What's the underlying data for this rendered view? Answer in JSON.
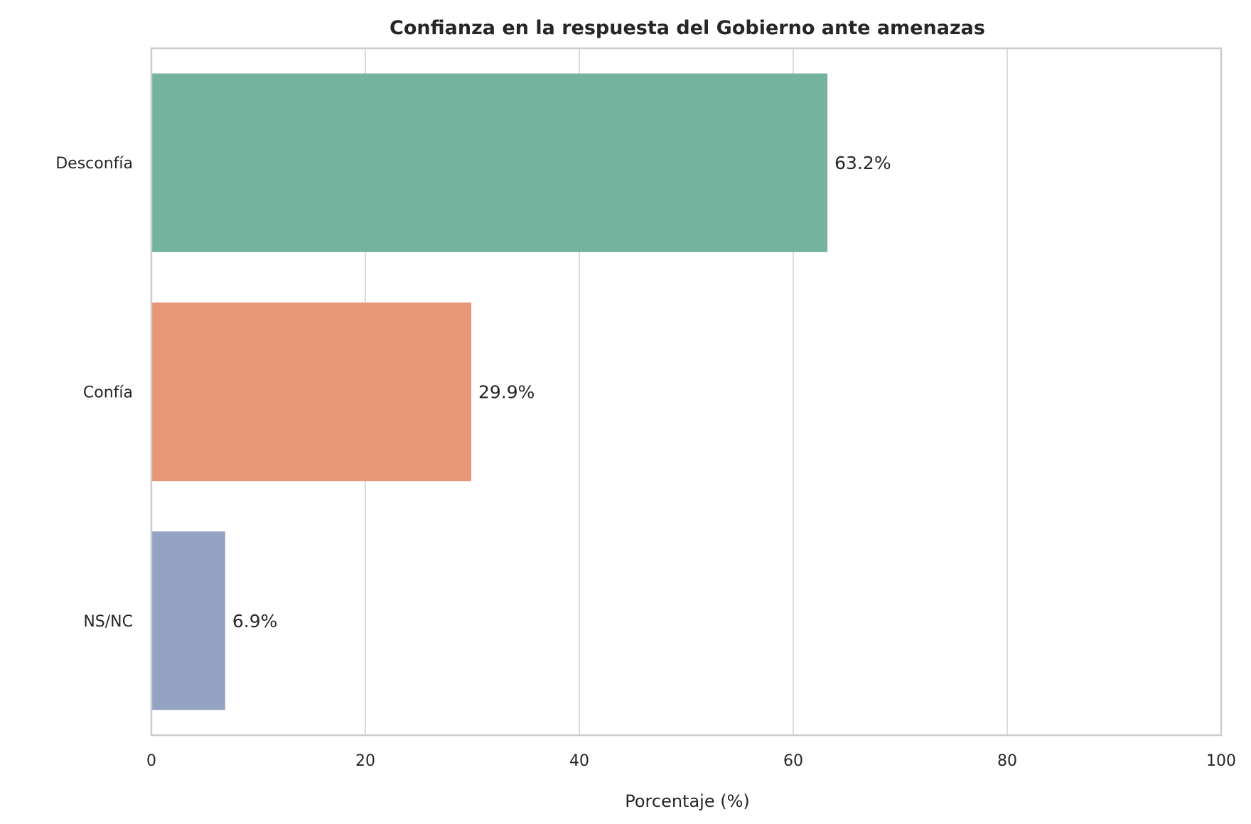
{
  "chart_data": {
    "type": "bar",
    "orientation": "horizontal",
    "title": "Confianza en la respuesta del Gobierno ante amenazas",
    "xlabel": "Porcentaje (%)",
    "ylabel": "",
    "xlim": [
      0,
      100
    ],
    "xticks": [
      0,
      20,
      40,
      60,
      80,
      100
    ],
    "categories": [
      "Desconfía",
      "Confía",
      "NS/NC"
    ],
    "values": [
      63.2,
      29.9,
      6.9
    ],
    "value_labels": [
      "63.2%",
      "29.9%",
      "6.9%"
    ],
    "colors": [
      "#74b49f",
      "#e99677",
      "#95a3c2"
    ],
    "grid": "vertical",
    "legend": "none"
  }
}
